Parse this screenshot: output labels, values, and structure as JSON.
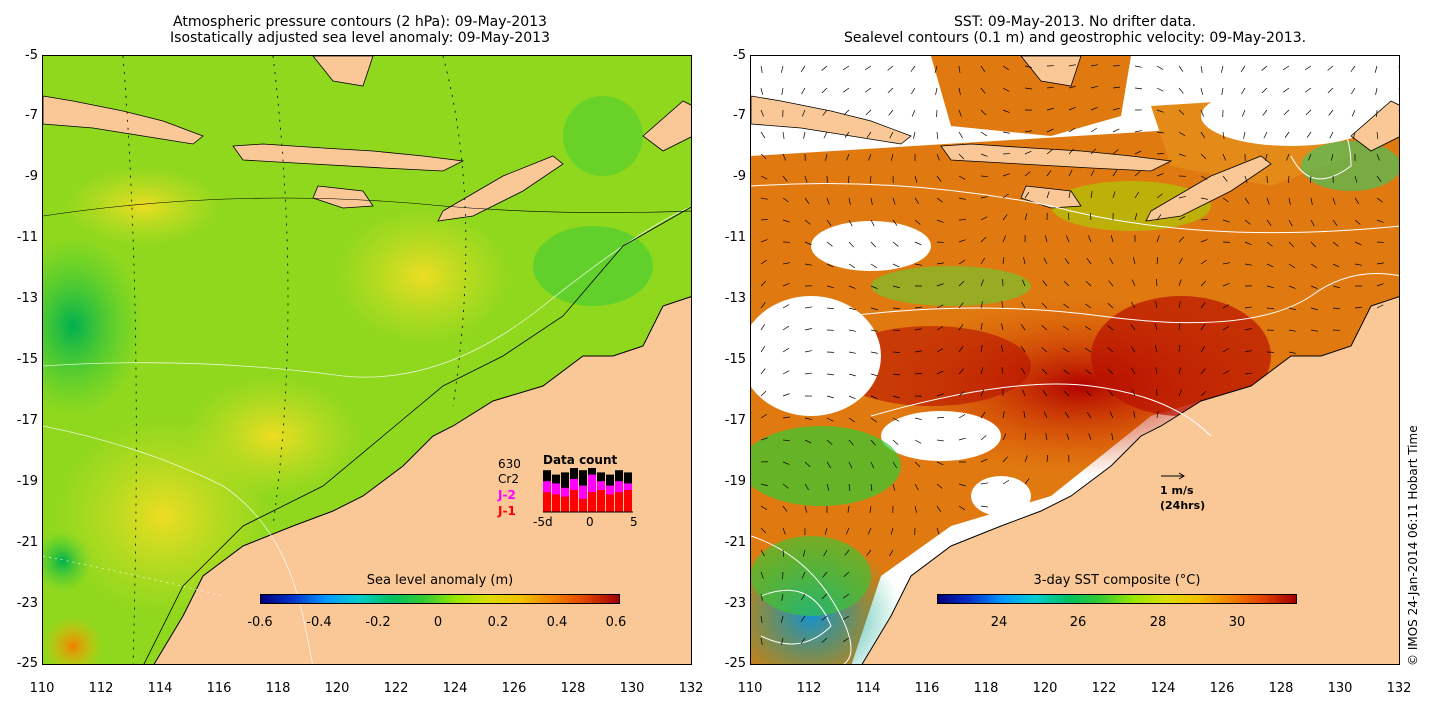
{
  "left_map": {
    "title_line1": "Atmospheric pressure contours (2 hPa): 09-May-2013",
    "title_line2": "Isostatically adjusted sea level anomaly: 09-May-2013",
    "colorbar_title": "Sea level anomaly (m)",
    "colorbar_ticks": [
      "-0.6",
      "-0.4",
      "-0.2",
      "0",
      "0.2",
      "0.4",
      "0.6"
    ],
    "colorbar_colors": [
      "#00007f",
      "#0033cc",
      "#0099ff",
      "#00cccc",
      "#00c060",
      "#33cc33",
      "#99e600",
      "#dddd00",
      "#f0c000",
      "#f08000",
      "#e04000",
      "#a00000"
    ],
    "data_count": {
      "title": "Data count",
      "count_value": "630",
      "legend": [
        {
          "label": "Cr2",
          "color": "#000000"
        },
        {
          "label": "J-2",
          "color": "#ff00ff"
        },
        {
          "label": "J-1",
          "color": "#ff0000"
        }
      ],
      "x_ticks": [
        "-5d",
        "0",
        "5"
      ],
      "bar_values": [
        {
          "j1": 0.45,
          "j2": 0.7,
          "cr2": 0.95
        },
        {
          "j1": 0.4,
          "j2": 0.65,
          "cr2": 0.85
        },
        {
          "j1": 0.35,
          "j2": 0.55,
          "cr2": 0.9
        },
        {
          "j1": 0.5,
          "j2": 0.75,
          "cr2": 1.0
        },
        {
          "j1": 0.3,
          "j2": 0.6,
          "cr2": 0.95
        },
        {
          "j1": 0.45,
          "j2": 0.85,
          "cr2": 1.0
        },
        {
          "j1": 0.5,
          "j2": 0.7,
          "cr2": 0.9
        },
        {
          "j1": 0.4,
          "j2": 0.6,
          "cr2": 0.85
        },
        {
          "j1": 0.45,
          "j2": 0.7,
          "cr2": 0.95
        },
        {
          "j1": 0.5,
          "j2": 0.65,
          "cr2": 0.9
        }
      ]
    }
  },
  "right_map": {
    "title_line1": "SST: 09-May-2013. No drifter data.",
    "title_line2": "Sealevel contours (0.1 m) and geostrophic velocity: 09-May-2013.",
    "colorbar_title": "3-day SST composite (°C)",
    "colorbar_ticks": [
      "24",
      "26",
      "28",
      "30"
    ],
    "colorbar_colors": [
      "#00007f",
      "#0033cc",
      "#0099ff",
      "#00cccc",
      "#00c060",
      "#33cc33",
      "#99e600",
      "#dddd00",
      "#f0c000",
      "#f08000",
      "#e04000",
      "#a00000"
    ],
    "velocity_scale": {
      "line1": "1 m/s",
      "line2": "(24hrs)"
    }
  },
  "axes": {
    "y_ticks": [
      "-5",
      "-7",
      "-9",
      "-11",
      "-13",
      "-15",
      "-17",
      "-19",
      "-21",
      "-23",
      "-25"
    ],
    "x_ticks": [
      "110",
      "112",
      "114",
      "116",
      "118",
      "120",
      "122",
      "124",
      "126",
      "128",
      "130",
      "132"
    ]
  },
  "credit": "© IMOS 24-Jan-2014 06:11 Hobart Time"
}
